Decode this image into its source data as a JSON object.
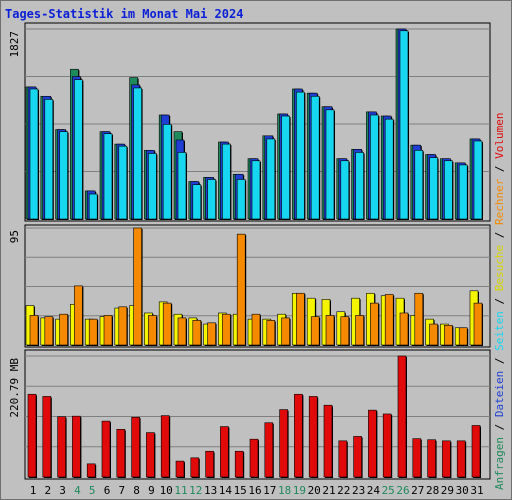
{
  "title": "Tages-Statistik im Monat Mai 2024",
  "colors": {
    "anfragen": "#1f8a5c",
    "dateien": "#1f3fd4",
    "seiten": "#17d6f0",
    "besuche": "#f5f500",
    "rechner": "#f58a00",
    "volumen": "#e00a0a",
    "weekend_label": "#1f8a5c",
    "weekday_label": "#000000"
  },
  "legend_right": [
    {
      "label": "Anfragen",
      "color": "#1f8a5c"
    },
    {
      "sep": " / "
    },
    {
      "label": "Dateien",
      "color": "#1f3fd4"
    },
    {
      "sep": " / "
    },
    {
      "label": "Seiten",
      "color": "#17d6f0"
    },
    {
      "sep": " / "
    },
    {
      "label": "Besuche",
      "color": "#d6d600"
    },
    {
      "sep": " / "
    },
    {
      "label": "Rechner",
      "color": "#f58a00"
    },
    {
      "sep": " / "
    },
    {
      "label": "Volumen",
      "color": "#e00a0a"
    }
  ],
  "chart_data": [
    {
      "type": "bar",
      "panel": "top",
      "max_label": "1827",
      "ylim": [
        0,
        1827
      ],
      "categories": [
        "1",
        "2",
        "3",
        "4",
        "5",
        "6",
        "7",
        "8",
        "9",
        "10",
        "11",
        "12",
        "13",
        "14",
        "15",
        "16",
        "17",
        "18",
        "19",
        "20",
        "21",
        "22",
        "23",
        "24",
        "25",
        "26",
        "27",
        "28",
        "29",
        "30",
        "31"
      ],
      "weekend_days": [
        4,
        5,
        11,
        12,
        18,
        19,
        25,
        26
      ],
      "series": [
        {
          "name": "Anfragen",
          "values": [
            1270,
            1180,
            860,
            1440,
            270,
            840,
            720,
            1360,
            660,
            1000,
            840,
            360,
            400,
            740,
            430,
            580,
            800,
            1010,
            1250,
            1210,
            1080,
            580,
            670,
            1030,
            990,
            1827,
            710,
            620,
            580,
            540,
            770
          ]
        },
        {
          "name": "Dateien",
          "values": [
            1270,
            1180,
            860,
            1370,
            270,
            840,
            720,
            1290,
            660,
            1000,
            760,
            360,
            400,
            740,
            430,
            580,
            800,
            1010,
            1250,
            1210,
            1080,
            580,
            670,
            1030,
            990,
            1827,
            710,
            620,
            580,
            540,
            770
          ]
        },
        {
          "name": "Seiten",
          "values": [
            1250,
            1150,
            840,
            1340,
            240,
            820,
            700,
            1260,
            630,
            910,
            640,
            330,
            380,
            720,
            380,
            560,
            770,
            990,
            1220,
            1180,
            1050,
            560,
            640,
            1000,
            960,
            1810,
            660,
            590,
            560,
            520,
            750
          ]
        }
      ]
    },
    {
      "type": "bar",
      "panel": "middle",
      "max_label": "95",
      "ylim": [
        0,
        95
      ],
      "categories": [
        "1",
        "2",
        "3",
        "4",
        "5",
        "6",
        "7",
        "8",
        "9",
        "10",
        "11",
        "12",
        "13",
        "14",
        "15",
        "16",
        "17",
        "18",
        "19",
        "20",
        "21",
        "22",
        "23",
        "24",
        "25",
        "26",
        "27",
        "28",
        "29",
        "30",
        "31"
      ],
      "series": [
        {
          "name": "Besuche",
          "values": [
            32,
            22,
            21,
            33,
            21,
            23,
            30,
            32,
            26,
            35,
            25,
            22,
            17,
            26,
            25,
            21,
            21,
            25,
            42,
            38,
            37,
            27,
            38,
            42,
            40,
            38,
            24,
            21,
            17,
            14,
            44
          ]
        },
        {
          "name": "Rechner",
          "values": [
            24,
            23,
            25,
            48,
            21,
            24,
            31,
            95,
            24,
            34,
            22,
            20,
            18,
            25,
            90,
            25,
            20,
            22,
            42,
            23,
            24,
            23,
            24,
            34,
            41,
            26,
            42,
            17,
            16,
            14,
            34
          ]
        }
      ]
    },
    {
      "type": "bar",
      "panel": "bottom",
      "max_label": "220.79 MB",
      "ylim": [
        0,
        220.79
      ],
      "unit": "MB",
      "categories": [
        "1",
        "2",
        "3",
        "4",
        "5",
        "6",
        "7",
        "8",
        "9",
        "10",
        "11",
        "12",
        "13",
        "14",
        "15",
        "16",
        "17",
        "18",
        "19",
        "20",
        "21",
        "22",
        "23",
        "24",
        "25",
        "26",
        "27",
        "28",
        "29",
        "30",
        "31"
      ],
      "series": [
        {
          "name": "Volumen",
          "values": [
            151,
            147,
            110,
            111,
            24,
            102,
            87,
            109,
            81,
            112,
            29,
            35,
            47,
            92,
            47,
            69,
            99,
            123,
            151,
            147,
            131,
            66,
            74,
            122,
            115,
            220.79,
            70,
            68,
            66,
            66,
            94
          ]
        }
      ]
    }
  ]
}
